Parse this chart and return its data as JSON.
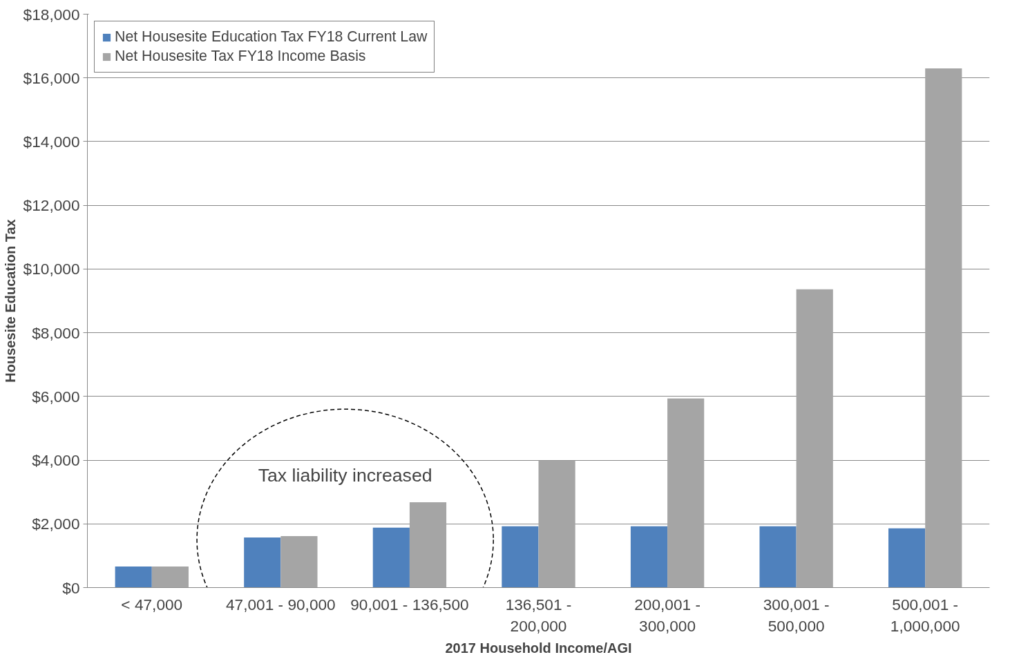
{
  "chart_data": {
    "type": "bar",
    "xlabel": "2017 Household Income/AGI",
    "ylabel": "Housesite Education Tax",
    "categories": [
      "< 47,000",
      "47,001 - 90,000",
      "90,001 - 136,500",
      "136,501 - 200,000",
      "200,001 - 300,000",
      "300,001 - 500,000",
      "500,001 - 1,000,000"
    ],
    "series": [
      {
        "name": "Net Housesite Education Tax FY18 Current Law",
        "color": "#4f81bd",
        "values": [
          660,
          1570,
          1880,
          1925,
          1925,
          1925,
          1860
        ]
      },
      {
        "name": "Net Housesite Tax FY18 Income Basis",
        "color": "#a5a5a5",
        "values": [
          660,
          1615,
          2680,
          3985,
          5935,
          9365,
          16295
        ]
      }
    ],
    "ylim": [
      0,
      18000
    ],
    "yticks": [
      {
        "value": 0,
        "label": "$0"
      },
      {
        "value": 2000,
        "label": "$2,000"
      },
      {
        "value": 4000,
        "label": "$4,000"
      },
      {
        "value": 6000,
        "label": "$6,000"
      },
      {
        "value": 8000,
        "label": "$8,000"
      },
      {
        "value": 10000,
        "label": "$10,000"
      },
      {
        "value": 12000,
        "label": "$12,000"
      },
      {
        "value": 14000,
        "label": "$14,000"
      },
      {
        "value": 16000,
        "label": "$16,000"
      },
      {
        "value": 18000,
        "label": "$18,000"
      }
    ],
    "grid": "y",
    "legend": "top left",
    "annotations": [
      "Tax liability increased"
    ]
  }
}
